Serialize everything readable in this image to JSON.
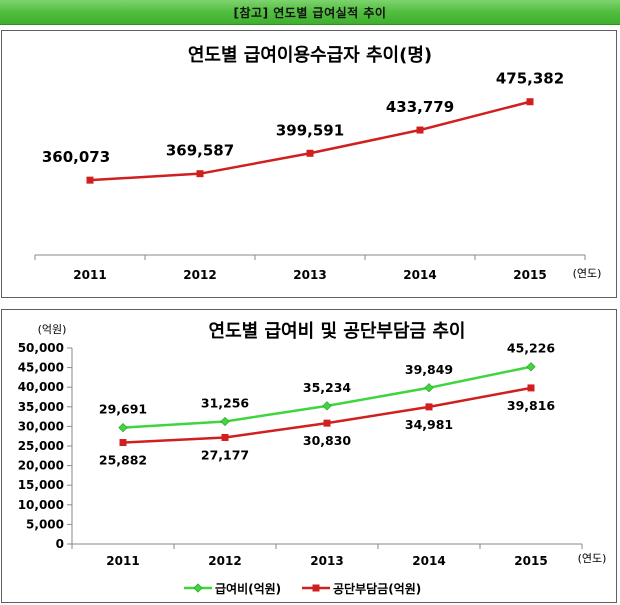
{
  "header": {
    "text": "[참고]  연도별  급여실적  추이"
  },
  "colors": {
    "red": "#d11f1f",
    "green": "#3fd53f",
    "header_green": "#55c043"
  },
  "chart_data": [
    {
      "type": "line",
      "title": "연도별  급여이용수급자 추이(명)",
      "x_unit": "(연도)",
      "categories": [
        "2011",
        "2012",
        "2013",
        "2014",
        "2015"
      ],
      "series": [
        {
          "values": [
            360073,
            369587,
            399591,
            433779,
            475382
          ],
          "labels": [
            "360,073",
            "369,587",
            "399,591",
            "433,779",
            "475,382"
          ],
          "color": "#d11f1f",
          "marker": "square"
        }
      ],
      "y_axis_visible": false,
      "grid": false
    },
    {
      "type": "line",
      "title": "연도별 급여비 및 공단부담금 추이",
      "y_unit": "(억원)",
      "x_unit": "(연도)",
      "categories": [
        "2011",
        "2012",
        "2013",
        "2014",
        "2015"
      ],
      "ylim": [
        0,
        50000
      ],
      "yticks": [
        "0",
        "5,000",
        "10,000",
        "15,000",
        "20,000",
        "25,000",
        "30,000",
        "35,000",
        "40,000",
        "45,000",
        "50,000"
      ],
      "series": [
        {
          "name": "급여비(억원)",
          "values": [
            29691,
            31256,
            35234,
            39849,
            45226
          ],
          "labels": [
            "29,691",
            "31,256",
            "35,234",
            "39,849",
            "45,226"
          ],
          "color": "#3fd53f",
          "marker": "diamond"
        },
        {
          "name": "공단부담금(억원)",
          "values": [
            25882,
            27177,
            30830,
            34981,
            39816
          ],
          "labels": [
            "25,882",
            "27,177",
            "30,830",
            "34,981",
            "39,816"
          ],
          "color": "#d11f1f",
          "marker": "square"
        }
      ],
      "legend": "bottom",
      "grid": false
    }
  ]
}
